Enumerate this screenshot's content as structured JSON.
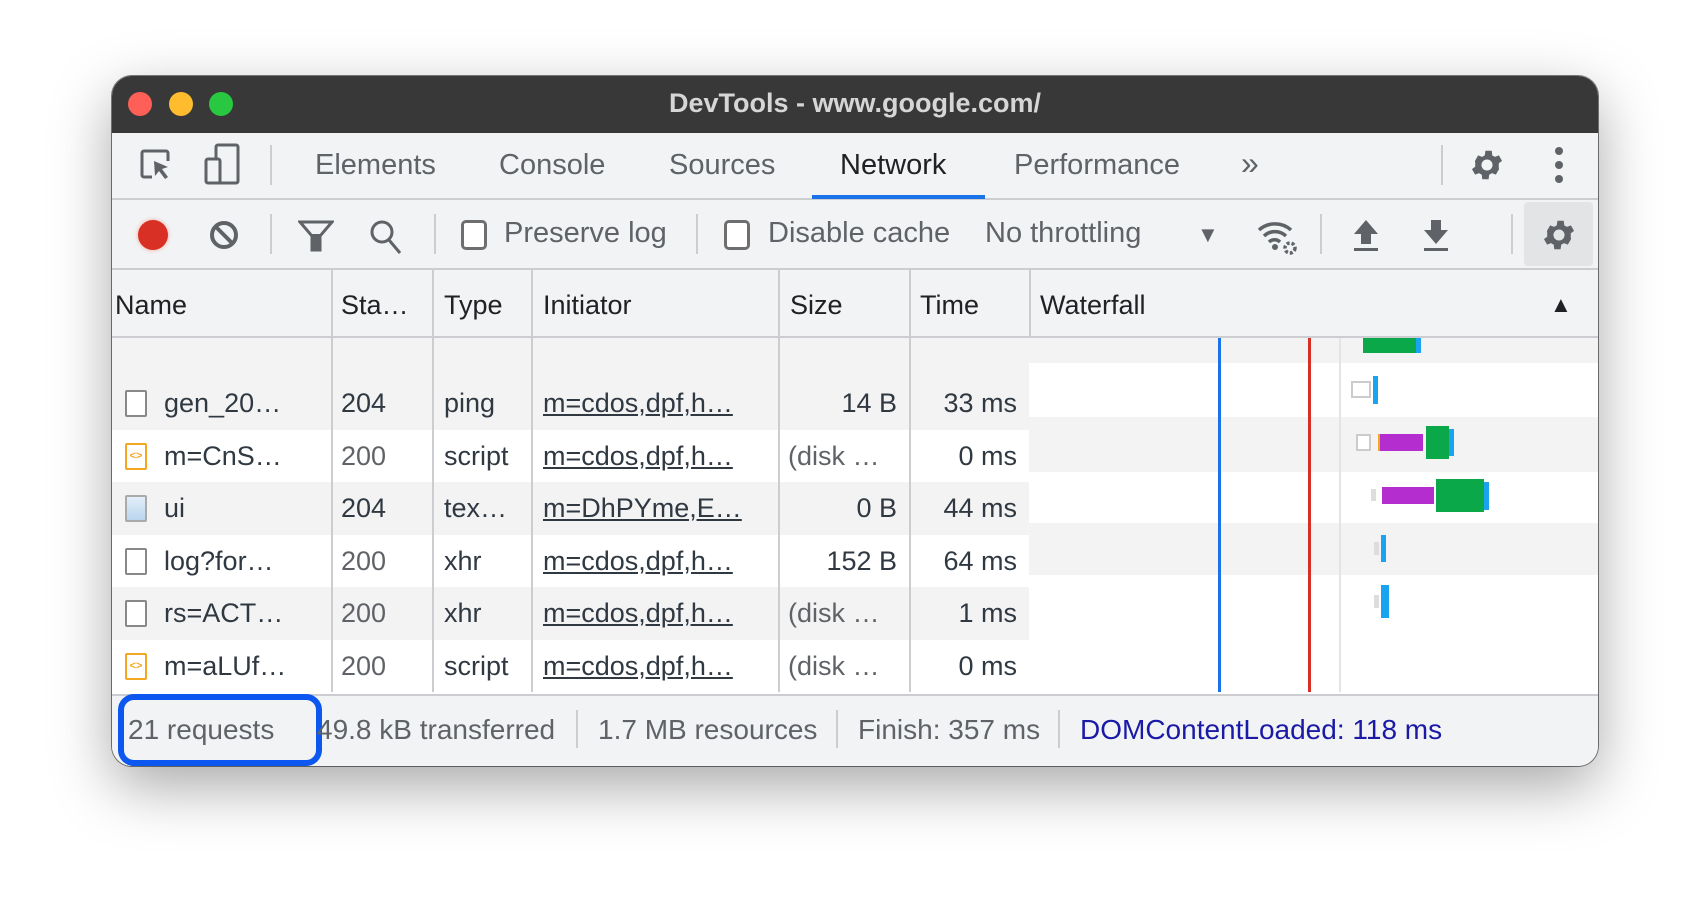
{
  "window": {
    "title": "DevTools - www.google.com/",
    "traffic_lights": [
      "#fe5f57",
      "#febc2e",
      "#28c840"
    ]
  },
  "tabs": [
    {
      "label": "Elements"
    },
    {
      "label": "Console"
    },
    {
      "label": "Sources"
    },
    {
      "label": "Network",
      "active": true
    },
    {
      "label": "Performance"
    }
  ],
  "more_tabs": "»",
  "toolbar": {
    "preserve_log": "Preserve log",
    "preserve_log_checked": false,
    "disable_cache": "Disable cache",
    "disable_cache_checked": false,
    "throttling": "No throttling"
  },
  "columns": [
    "Name",
    "Sta…",
    "Type",
    "Initiator",
    "Size",
    "Time",
    "Waterfall"
  ],
  "rows": [
    {
      "icon": "document",
      "name": "gen_20…",
      "status": "204",
      "type": "ping",
      "initiator": "m=cdos,dpf,h…",
      "size": "14 B",
      "time": "33 ms"
    },
    {
      "icon": "script",
      "name": "m=CnS…",
      "status": "200",
      "type": "script",
      "initiator": "m=cdos,dpf,h…",
      "size": "(disk …",
      "time": "0 ms"
    },
    {
      "icon": "image",
      "name": "ui",
      "status": "204",
      "type": "tex…",
      "initiator": "m=DhPYme,E…",
      "size": "0 B",
      "time": "44 ms"
    },
    {
      "icon": "document",
      "name": "log?for…",
      "status": "200",
      "type": "xhr",
      "initiator": "m=cdos,dpf,h…",
      "size": "152 B",
      "time": "64 ms"
    },
    {
      "icon": "document",
      "name": "rs=ACT…",
      "status": "200",
      "type": "xhr",
      "initiator": "m=cdos,dpf,h…",
      "size": "(disk …",
      "time": "1 ms"
    },
    {
      "icon": "script",
      "name": "m=aLUf…",
      "status": "200",
      "type": "script",
      "initiator": "m=cdos,dpf,h…",
      "size": "(disk …",
      "time": "0 ms"
    }
  ],
  "footer": {
    "requests": "21 requests",
    "transferred": "49.8 kB transferred",
    "resources": "1.7 MB resources",
    "finish": "Finish: 357 ms",
    "dcl": "DOMContentLoaded: 118 ms"
  },
  "colors": {
    "accent": "#1a73e8",
    "record": "#d93025",
    "dcl_line": "#1a73e8",
    "load_line": "#d93025",
    "waiting": "#b32dcf",
    "download": "#0ba84a",
    "highlight": "#0b57f0"
  }
}
